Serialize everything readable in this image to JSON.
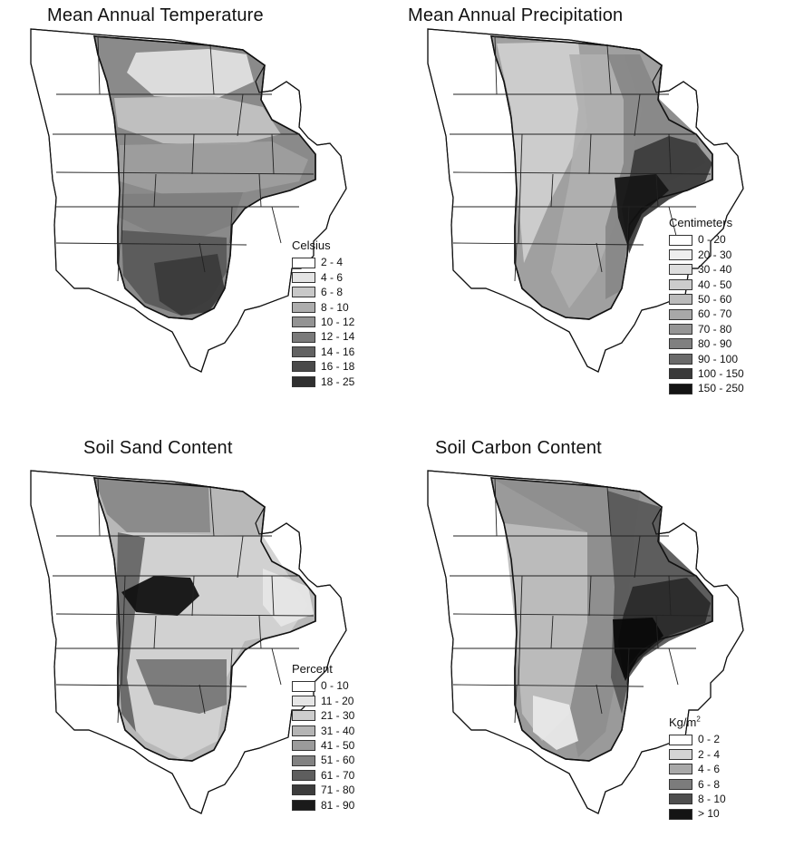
{
  "panels": [
    {
      "id": "temperature",
      "title": "Mean Annual Temperature",
      "legend_title": "Celsius",
      "fill_color": "#8a8a8a",
      "classes": [
        {
          "label": "2 - 4",
          "color": "#ffffff"
        },
        {
          "label": "4 - 6",
          "color": "#e4e4e4"
        },
        {
          "label": "6 - 8",
          "color": "#c8c8c8"
        },
        {
          "label": "8 - 10",
          "color": "#adadad"
        },
        {
          "label": "10 - 12",
          "color": "#939393"
        },
        {
          "label": "12 - 14",
          "color": "#7a7a7a"
        },
        {
          "label": "14 - 16",
          "color": "#626262"
        },
        {
          "label": "16 - 18",
          "color": "#4a4a4a"
        },
        {
          "label": "18 - 25",
          "color": "#303030"
        }
      ]
    },
    {
      "id": "precipitation",
      "title": "Mean Annual Precipitation",
      "legend_title": "Centimeters",
      "fill_color": "#a0a0a0",
      "classes": [
        {
          "label": "0 - 20",
          "color": "#ffffff"
        },
        {
          "label": "20 - 30",
          "color": "#eeeeee"
        },
        {
          "label": "30 - 40",
          "color": "#dddddd"
        },
        {
          "label": "40 - 50",
          "color": "#cccccc"
        },
        {
          "label": "50 - 60",
          "color": "#bbbbbb"
        },
        {
          "label": "60 - 70",
          "color": "#a8a8a8"
        },
        {
          "label": "70 - 80",
          "color": "#959595"
        },
        {
          "label": "80 - 90",
          "color": "#808080"
        },
        {
          "label": "90 - 100",
          "color": "#6a6a6a"
        },
        {
          "label": "100 - 150",
          "color": "#3a3a3a"
        },
        {
          "label": "150 - 250",
          "color": "#141414"
        }
      ]
    },
    {
      "id": "sand",
      "title": "Soil Sand Content",
      "legend_title": "Percent",
      "fill_color": "#b8b8b8",
      "classes": [
        {
          "label": "0 - 10",
          "color": "#ffffff"
        },
        {
          "label": "11 - 20",
          "color": "#e6e6e6"
        },
        {
          "label": "21 - 30",
          "color": "#cdcdcd"
        },
        {
          "label": "31 - 40",
          "color": "#b4b4b4"
        },
        {
          "label": "41 - 50",
          "color": "#9b9b9b"
        },
        {
          "label": "51 - 60",
          "color": "#828282"
        },
        {
          "label": "61 - 70",
          "color": "#5e5e5e"
        },
        {
          "label": "71 - 80",
          "color": "#3c3c3c"
        },
        {
          "label": "81 - 90",
          "color": "#1a1a1a"
        }
      ]
    },
    {
      "id": "carbon",
      "title": "Soil Carbon Content",
      "legend_title_main": "Kg/m",
      "legend_title_sup": "2",
      "fill_color": "#9a9a9a",
      "classes": [
        {
          "label": "0 - 2",
          "color": "#ffffff"
        },
        {
          "label": "2 - 4",
          "color": "#d4d4d4"
        },
        {
          "label": "4 - 6",
          "color": "#a8a8a8"
        },
        {
          "label": "6 - 8",
          "color": "#7c7c7c"
        },
        {
          "label": "8 - 10",
          "color": "#4e4e4e"
        },
        {
          "label": "> 10",
          "color": "#141414"
        }
      ]
    }
  ]
}
